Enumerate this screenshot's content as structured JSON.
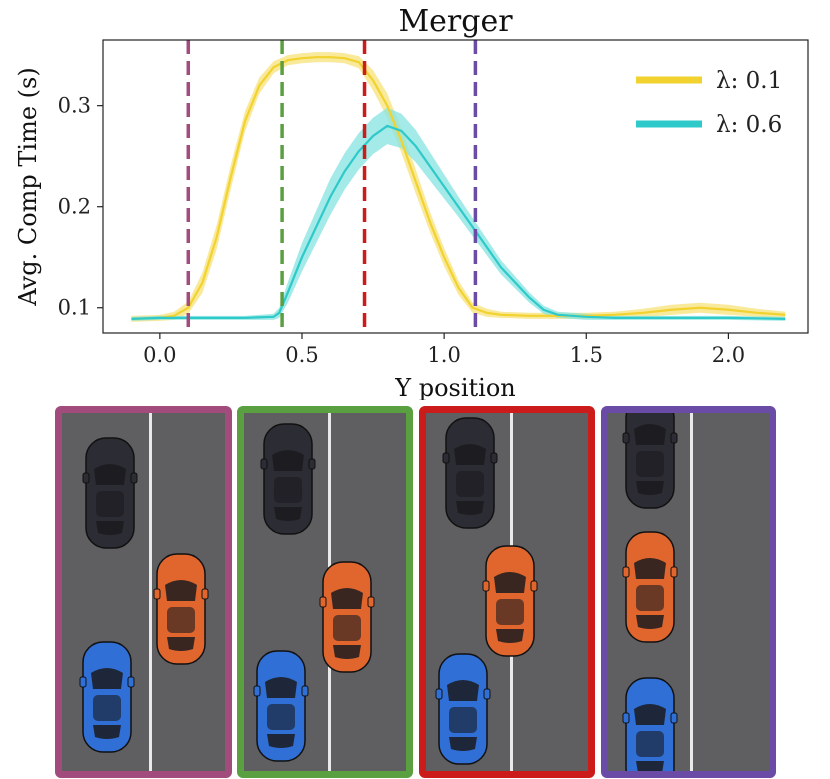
{
  "chart_data": {
    "type": "line",
    "title": "Merger",
    "xlabel": "Y position",
    "ylabel": "Avg. Comp Time (s)",
    "xlim": [
      -0.2,
      2.28
    ],
    "ylim": [
      0.075,
      0.365
    ],
    "xticks": [
      "0.0",
      "0.5",
      "1.0",
      "1.5",
      "2.0"
    ],
    "xtick_values": [
      0.0,
      0.5,
      1.0,
      1.5,
      2.0
    ],
    "yticks": [
      "0.1",
      "0.2",
      "0.3"
    ],
    "ytick_values": [
      0.1,
      0.2,
      0.3
    ],
    "legend_position": "top-right",
    "series": [
      {
        "name": "λ: 0.1",
        "color": "#f2d22e",
        "band_color": "#f7e27a",
        "x": [
          -0.1,
          0.0,
          0.05,
          0.1,
          0.15,
          0.2,
          0.25,
          0.3,
          0.35,
          0.4,
          0.45,
          0.5,
          0.55,
          0.6,
          0.65,
          0.7,
          0.75,
          0.8,
          0.85,
          0.9,
          0.95,
          1.0,
          1.05,
          1.1,
          1.15,
          1.2,
          1.3,
          1.4,
          1.5,
          1.6,
          1.7,
          1.8,
          1.9,
          2.0,
          2.1,
          2.2
        ],
        "y": [
          0.089,
          0.09,
          0.092,
          0.1,
          0.125,
          0.17,
          0.23,
          0.285,
          0.32,
          0.338,
          0.345,
          0.347,
          0.348,
          0.348,
          0.347,
          0.343,
          0.325,
          0.3,
          0.265,
          0.225,
          0.185,
          0.15,
          0.12,
          0.1,
          0.095,
          0.093,
          0.092,
          0.092,
          0.092,
          0.093,
          0.095,
          0.098,
          0.1,
          0.098,
          0.095,
          0.093
        ],
        "err": [
          0.003,
          0.003,
          0.004,
          0.006,
          0.01,
          0.012,
          0.012,
          0.01,
          0.008,
          0.006,
          0.005,
          0.005,
          0.005,
          0.005,
          0.005,
          0.006,
          0.01,
          0.012,
          0.012,
          0.012,
          0.01,
          0.009,
          0.007,
          0.005,
          0.004,
          0.003,
          0.003,
          0.003,
          0.003,
          0.003,
          0.004,
          0.005,
          0.005,
          0.005,
          0.004,
          0.003
        ]
      },
      {
        "name": "λ: 0.6",
        "color": "#2ec9c9",
        "band_color": "#86e3e0",
        "x": [
          -0.1,
          0.0,
          0.1,
          0.2,
          0.3,
          0.4,
          0.42,
          0.45,
          0.5,
          0.55,
          0.6,
          0.65,
          0.7,
          0.75,
          0.8,
          0.85,
          0.9,
          0.95,
          1.0,
          1.05,
          1.1,
          1.15,
          1.2,
          1.25,
          1.3,
          1.35,
          1.4,
          1.5,
          1.6,
          1.8,
          2.0,
          2.2
        ],
        "y": [
          0.089,
          0.09,
          0.09,
          0.09,
          0.09,
          0.091,
          0.095,
          0.115,
          0.15,
          0.18,
          0.21,
          0.235,
          0.255,
          0.27,
          0.28,
          0.275,
          0.26,
          0.24,
          0.22,
          0.2,
          0.18,
          0.16,
          0.14,
          0.125,
          0.11,
          0.098,
          0.093,
          0.091,
          0.09,
          0.09,
          0.09,
          0.089
        ],
        "err": [
          0.002,
          0.002,
          0.002,
          0.002,
          0.002,
          0.003,
          0.005,
          0.01,
          0.014,
          0.016,
          0.018,
          0.018,
          0.018,
          0.018,
          0.018,
          0.017,
          0.016,
          0.014,
          0.012,
          0.01,
          0.009,
          0.008,
          0.007,
          0.006,
          0.005,
          0.004,
          0.003,
          0.003,
          0.002,
          0.002,
          0.002,
          0.002
        ]
      }
    ],
    "vlines": [
      {
        "x": 0.1,
        "color": "#a24c7e"
      },
      {
        "x": 0.43,
        "color": "#5ba040"
      },
      {
        "x": 0.72,
        "color": "#cc1b1b"
      },
      {
        "x": 1.11,
        "color": "#6a4ca6"
      }
    ]
  },
  "panels": [
    {
      "border_color": "#a24c7e",
      "lane_line": true,
      "cars": [
        {
          "color": "black"
        },
        {
          "color": "orange"
        },
        {
          "color": "blue"
        }
      ]
    },
    {
      "border_color": "#5ba040",
      "lane_line": true,
      "cars": [
        {
          "color": "black"
        },
        {
          "color": "orange"
        },
        {
          "color": "blue"
        }
      ]
    },
    {
      "border_color": "#cc1b1b",
      "lane_line": true,
      "cars": [
        {
          "color": "black"
        },
        {
          "color": "orange"
        },
        {
          "color": "blue"
        }
      ]
    },
    {
      "border_color": "#6a4ca6",
      "lane_line": true,
      "cars": [
        {
          "color": "black"
        },
        {
          "color": "orange"
        },
        {
          "color": "blue"
        }
      ]
    }
  ],
  "car_colors": {
    "black": "#2c2c34",
    "orange": "#e0662e",
    "blue": "#2f6fd6"
  }
}
